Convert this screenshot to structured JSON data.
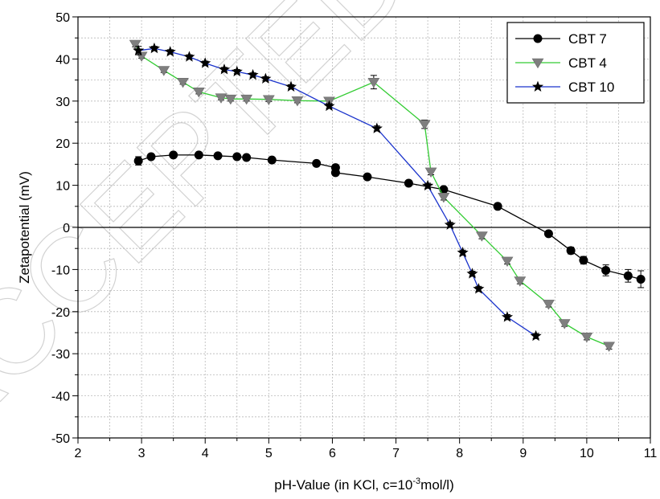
{
  "chart_data": {
    "type": "line",
    "title": "",
    "xlabel_main": "pH-Value (in KCl, c=10",
    "xlabel_sup": "-3",
    "xlabel_tail": "mol/l)",
    "ylabel": "Zetapotential (mV)",
    "xlim": [
      2,
      11
    ],
    "ylim": [
      -50,
      50
    ],
    "x_ticks": [
      "2",
      "3",
      "4",
      "5",
      "6",
      "7",
      "8",
      "9",
      "10",
      "11"
    ],
    "y_ticks": [
      "-50",
      "-40",
      "-30",
      "-20",
      "-10",
      "0",
      "10",
      "20",
      "30",
      "40",
      "50"
    ],
    "grid": true,
    "legend_position": "top-right",
    "watermark": "ACCEPTED MANUSCRIPT",
    "series": [
      {
        "name": "CBT 7",
        "color": "#000000",
        "marker": "circle",
        "x": [
          2.95,
          3.15,
          3.5,
          3.9,
          4.2,
          4.5,
          4.65,
          5.05,
          5.75,
          6.05,
          6.05,
          6.55,
          7.2,
          7.75,
          8.6,
          9.4,
          9.75,
          9.95,
          10.3,
          10.65,
          10.85
        ],
        "y": [
          15.8,
          16.8,
          17.2,
          17.2,
          17.0,
          16.8,
          16.6,
          16.0,
          15.2,
          14.2,
          13.0,
          12.0,
          10.5,
          9.0,
          5.0,
          -1.5,
          -5.5,
          -7.8,
          -10.2,
          -11.5,
          -12.3
        ],
        "err": [
          1.0,
          0.5,
          0.4,
          0.4,
          0.4,
          0.4,
          0.4,
          0.4,
          0.6,
          0.6,
          0.6,
          0.5,
          0.6,
          0.6,
          0.6,
          0.6,
          0.8,
          0.9,
          1.3,
          1.5,
          2.0
        ]
      },
      {
        "name": "CBT 4",
        "color": "#33cc33",
        "marker": "triangle-down",
        "x": [
          2.9,
          3.0,
          3.35,
          3.65,
          3.9,
          4.25,
          4.4,
          4.65,
          5.0,
          5.45,
          5.95,
          6.65,
          7.45,
          7.55,
          7.75,
          8.35,
          8.75,
          8.95,
          9.4,
          9.65,
          10.0,
          10.35
        ],
        "y": [
          43.5,
          40.7,
          37.3,
          34.5,
          32.2,
          30.8,
          30.5,
          30.5,
          30.4,
          30.1,
          30.0,
          34.5,
          24.5,
          13.2,
          7.2,
          -2.0,
          -8.0,
          -12.7,
          -18.2,
          -22.8,
          -26.0,
          -28.2
        ],
        "err": [
          0.6,
          0.5,
          0.5,
          0.5,
          0.5,
          0.5,
          0.5,
          0.5,
          0.5,
          0.5,
          0.5,
          1.6,
          1.0,
          0.7,
          0.7,
          0.7,
          0.7,
          0.7,
          0.7,
          0.7,
          0.7,
          0.7
        ]
      },
      {
        "name": "CBT 10",
        "color": "#1a33cc",
        "marker": "star",
        "x": [
          2.95,
          3.2,
          3.45,
          3.75,
          4.0,
          4.3,
          4.5,
          4.75,
          4.95,
          5.35,
          5.95,
          6.7,
          7.5,
          7.85,
          8.05,
          8.2,
          8.3,
          8.75,
          9.2
        ],
        "y": [
          42.0,
          42.5,
          41.7,
          40.5,
          39.0,
          37.5,
          37.0,
          36.2,
          35.3,
          33.4,
          28.8,
          23.5,
          9.9,
          0.6,
          -6.0,
          -11.0,
          -14.6,
          -21.3,
          -25.8
        ],
        "err": [
          1.0,
          0.5,
          0.5,
          0.5,
          0.5,
          0.5,
          0.5,
          0.5,
          0.5,
          0.5,
          0.5,
          0.6,
          0.6,
          0.6,
          0.6,
          0.6,
          0.6,
          0.6,
          0.6
        ]
      }
    ]
  }
}
